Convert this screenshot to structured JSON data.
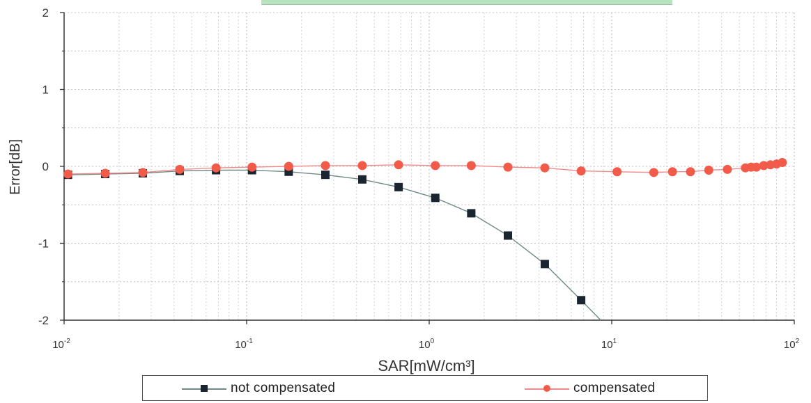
{
  "chart_data": {
    "type": "scatter",
    "xlabel": "SAR[mW/cm³]",
    "ylabel": "Error[dB]",
    "xscale": "log",
    "xlim": [
      0.01,
      100
    ],
    "ylim": [
      -2,
      2
    ],
    "x_ticks": [
      {
        "value": 0.01,
        "base": "10",
        "exp": "-2"
      },
      {
        "value": 0.1,
        "base": "10",
        "exp": "-1"
      },
      {
        "value": 1,
        "base": "10",
        "exp": "0"
      },
      {
        "value": 10,
        "base": "10",
        "exp": "1"
      },
      {
        "value": 100,
        "base": "10",
        "exp": "2"
      }
    ],
    "y_ticks": [
      -2,
      -1,
      0,
      1,
      2
    ],
    "grid": true,
    "legend_position": "bottom",
    "series": [
      {
        "name": "not compensated",
        "marker": "square",
        "color": "#1a2530",
        "line_color": "#6f8a86",
        "points": [
          {
            "x": 0.0105,
            "y": -0.11
          },
          {
            "x": 0.0168,
            "y": -0.1
          },
          {
            "x": 0.027,
            "y": -0.09
          },
          {
            "x": 0.043,
            "y": -0.06
          },
          {
            "x": 0.068,
            "y": -0.05
          },
          {
            "x": 0.107,
            "y": -0.05
          },
          {
            "x": 0.17,
            "y": -0.07
          },
          {
            "x": 0.27,
            "y": -0.11
          },
          {
            "x": 0.43,
            "y": -0.17
          },
          {
            "x": 0.68,
            "y": -0.27
          },
          {
            "x": 1.08,
            "y": -0.41
          },
          {
            "x": 1.7,
            "y": -0.61
          },
          {
            "x": 2.7,
            "y": -0.9
          },
          {
            "x": 4.3,
            "y": -1.27
          },
          {
            "x": 6.8,
            "y": -1.74
          },
          {
            "x": 8.7,
            "y": -2.0
          }
        ]
      },
      {
        "name": "compensated",
        "marker": "circle",
        "color": "#f25a4a",
        "line_color": "#f08a8a",
        "points": [
          {
            "x": 0.0105,
            "y": -0.1
          },
          {
            "x": 0.0168,
            "y": -0.09
          },
          {
            "x": 0.027,
            "y": -0.08
          },
          {
            "x": 0.043,
            "y": -0.04
          },
          {
            "x": 0.068,
            "y": -0.02
          },
          {
            "x": 0.107,
            "y": -0.01
          },
          {
            "x": 0.17,
            "y": 0.0
          },
          {
            "x": 0.27,
            "y": 0.01
          },
          {
            "x": 0.43,
            "y": 0.01
          },
          {
            "x": 0.68,
            "y": 0.02
          },
          {
            "x": 1.08,
            "y": 0.01
          },
          {
            "x": 1.7,
            "y": 0.01
          },
          {
            "x": 2.7,
            "y": -0.01
          },
          {
            "x": 4.3,
            "y": -0.02
          },
          {
            "x": 6.8,
            "y": -0.06
          },
          {
            "x": 10.7,
            "y": -0.07
          },
          {
            "x": 17,
            "y": -0.08
          },
          {
            "x": 21.5,
            "y": -0.07
          },
          {
            "x": 27,
            "y": -0.07
          },
          {
            "x": 34,
            "y": -0.05
          },
          {
            "x": 43,
            "y": -0.04
          },
          {
            "x": 54,
            "y": -0.02
          },
          {
            "x": 58,
            "y": -0.01
          },
          {
            "x": 62,
            "y": -0.01
          },
          {
            "x": 68,
            "y": 0.01
          },
          {
            "x": 74,
            "y": 0.02
          },
          {
            "x": 80,
            "y": 0.03
          },
          {
            "x": 86,
            "y": 0.05
          }
        ]
      }
    ]
  }
}
